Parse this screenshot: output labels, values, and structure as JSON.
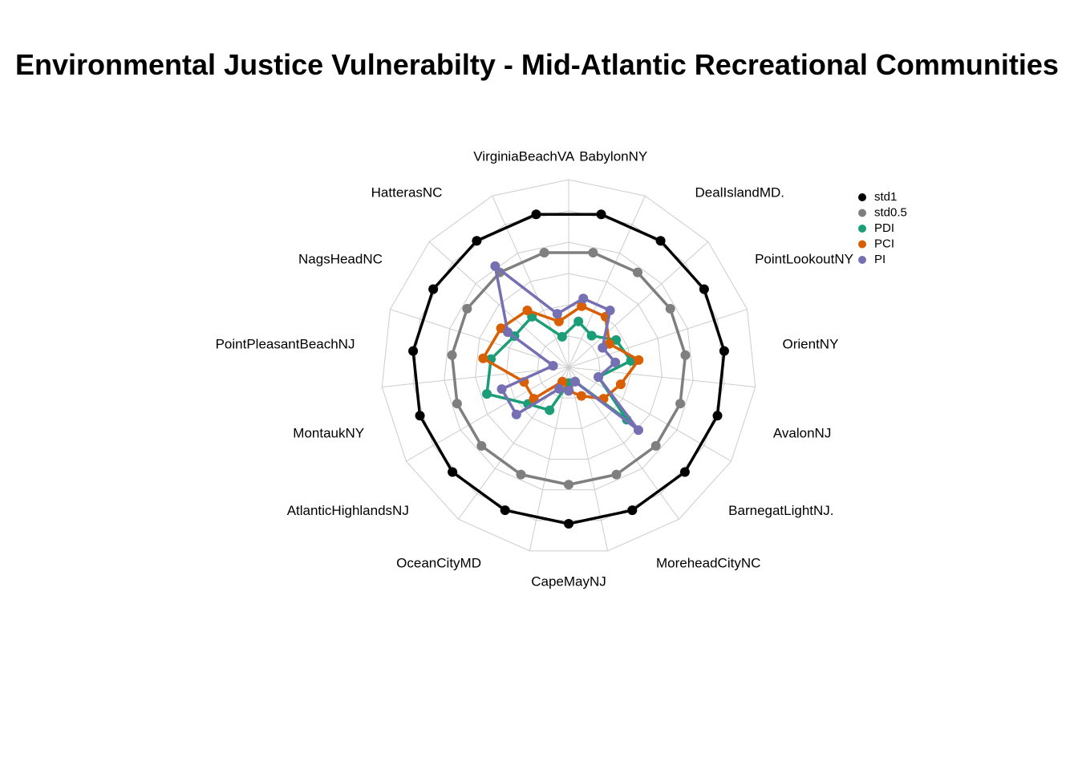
{
  "chart_data": {
    "type": "radar",
    "title": "Environmental Justice Vulnerabilty - Mid-Atlantic Recreational Communities",
    "categories": [
      "BabylonNY",
      "DealIslandMD.",
      "PointLookoutNY",
      "OrientNY",
      "AvalonNJ",
      "BarnegatLightNJ.",
      "MoreheadCityNC",
      "CapeMayNJ",
      "OceanCityMD",
      "AtlanticHighlandsNJ",
      "MontaukNY",
      "PointPleasantBeachNJ",
      "NagsHeadNC",
      "HatterasNC",
      "VirginiaBeachVA"
    ],
    "rlim": [
      0,
      1.2
    ],
    "grid_levels": 6,
    "series": [
      {
        "name": "std1",
        "color": "#000000",
        "values": [
          1,
          1,
          1,
          1,
          1,
          1,
          1,
          1,
          1,
          1,
          1,
          1,
          1,
          1,
          1
        ]
      },
      {
        "name": "std0.5",
        "color": "#7f7f7f",
        "values": [
          0.75,
          0.75,
          0.75,
          0.75,
          0.75,
          0.75,
          0.75,
          0.75,
          0.75,
          0.75,
          0.75,
          0.75,
          0.75,
          0.75,
          0.75
        ]
      },
      {
        "name": "PDI",
        "color": "#1b9e77",
        "values": [
          0.3,
          0.25,
          0.35,
          0.4,
          0.2,
          0.5,
          0.1,
          0.1,
          0.3,
          0.35,
          0.55,
          0.5,
          0.4,
          0.4,
          0.2
        ]
      },
      {
        "name": "PCI",
        "color": "#d95f02",
        "values": [
          0.4,
          0.4,
          0.3,
          0.45,
          0.35,
          0.3,
          0.2,
          0.15,
          0.1,
          0.3,
          0.3,
          0.55,
          0.5,
          0.45,
          0.3
        ]
      },
      {
        "name": "PI",
        "color": "#7570b3",
        "values": [
          0.45,
          0.45,
          0.25,
          0.3,
          0.2,
          0.6,
          0.1,
          0.15,
          0.15,
          0.45,
          0.45,
          0.1,
          0.45,
          0.8,
          0.35
        ]
      }
    ],
    "legend_position": "right"
  }
}
